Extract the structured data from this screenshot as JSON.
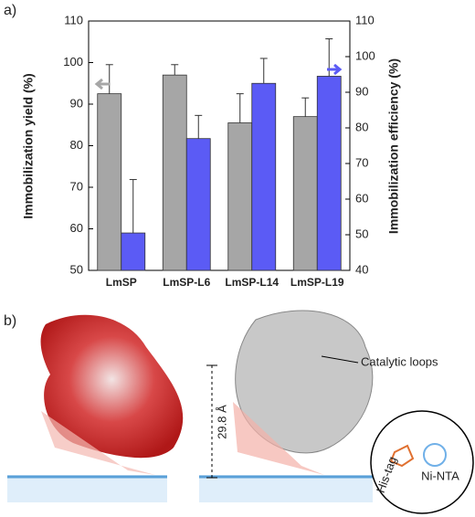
{
  "chart_data": {
    "type": "bar",
    "y_label": "Immobilization yield (%)",
    "y2_label": "Immobilization efficiency (%)",
    "categories": [
      "LmSP",
      "LmSP-L6",
      "LmSP-L14",
      "LmSP-L19"
    ],
    "series": [
      {
        "name": "Immobilization yield",
        "color": "#a6a6a6",
        "axis": "y",
        "values": [
          92.5,
          97,
          85.5,
          87
        ],
        "errors": [
          7,
          2.5,
          7,
          4.5
        ]
      },
      {
        "name": "Immobilization efficiency",
        "color": "#5b5bf5",
        "axis": "y2",
        "values": [
          50.5,
          77,
          92.5,
          94.5
        ],
        "errors": [
          15,
          6.5,
          7,
          10.5
        ]
      }
    ],
    "ylim": [
      50,
      110
    ],
    "yticks": [
      50,
      60,
      70,
      80,
      90,
      100,
      110
    ],
    "y2lim": [
      40,
      110
    ],
    "y2ticks": [
      40,
      50,
      60,
      70,
      80,
      90,
      100,
      110
    ],
    "grid": false
  },
  "panel_labels": [
    "a)",
    "b)"
  ],
  "panel_b": {
    "annotations": [
      "Catalytic loops",
      "29.8 Å",
      "Ni-NTA",
      "His-tag"
    ]
  }
}
